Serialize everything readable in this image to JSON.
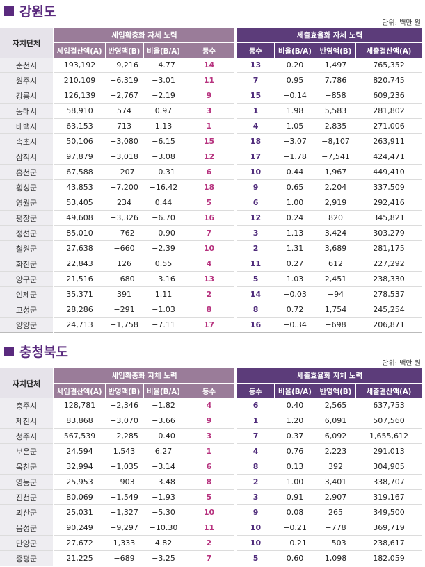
{
  "sections": [
    {
      "title": "강원도",
      "unit": "단위: 백만 원",
      "header": {
        "region": "자치단체",
        "groupA": "세입확충화 자체 노력",
        "groupB": "세출효율화 자체 노력",
        "colsA": [
          "세입결산액(A)",
          "반영액(B)",
          "비율(B/A)",
          "등수"
        ],
        "colsB": [
          "등수",
          "비율(B/A)",
          "반영액(B)",
          "세출결산액(A)"
        ]
      },
      "rows": [
        [
          "춘천시",
          "193,192",
          "−9,216",
          "−4.77",
          "14",
          "13",
          "0.20",
          "1,497",
          "765,352"
        ],
        [
          "원주시",
          "210,109",
          "−6,319",
          "−3.01",
          "11",
          "7",
          "0.95",
          "7,786",
          "820,745"
        ],
        [
          "강릉시",
          "126,139",
          "−2,767",
          "−2.19",
          "9",
          "15",
          "−0.14",
          "−858",
          "609,236"
        ],
        [
          "동해시",
          "58,910",
          "574",
          "0.97",
          "3",
          "1",
          "1.98",
          "5,583",
          "281,802"
        ],
        [
          "태백시",
          "63,153",
          "713",
          "1.13",
          "1",
          "4",
          "1.05",
          "2,835",
          "271,006"
        ],
        [
          "속초시",
          "50,106",
          "−3,080",
          "−6.15",
          "15",
          "18",
          "−3.07",
          "−8,107",
          "263,911"
        ],
        [
          "삼척시",
          "97,879",
          "−3,018",
          "−3.08",
          "12",
          "17",
          "−1.78",
          "−7,541",
          "424,471"
        ],
        [
          "홍천군",
          "67,588",
          "−207",
          "−0.31",
          "6",
          "10",
          "0.44",
          "1,967",
          "449,410"
        ],
        [
          "횡성군",
          "43,853",
          "−7,200",
          "−16.42",
          "18",
          "9",
          "0.65",
          "2,204",
          "337,509"
        ],
        [
          "영월군",
          "53,405",
          "234",
          "0.44",
          "5",
          "6",
          "1.00",
          "2,919",
          "292,416"
        ],
        [
          "평창군",
          "49,608",
          "−3,326",
          "−6.70",
          "16",
          "12",
          "0.24",
          "820",
          "345,821"
        ],
        [
          "정선군",
          "85,010",
          "−762",
          "−0.90",
          "7",
          "3",
          "1.13",
          "3,424",
          "303,279"
        ],
        [
          "철원군",
          "27,638",
          "−660",
          "−2.39",
          "10",
          "2",
          "1.31",
          "3,689",
          "281,175"
        ],
        [
          "화천군",
          "22,843",
          "126",
          "0.55",
          "4",
          "11",
          "0.27",
          "612",
          "227,292"
        ],
        [
          "양구군",
          "21,516",
          "−680",
          "−3.16",
          "13",
          "5",
          "1.03",
          "2,451",
          "238,330"
        ],
        [
          "인제군",
          "35,371",
          "391",
          "1.11",
          "2",
          "14",
          "−0.03",
          "−94",
          "278,537"
        ],
        [
          "고성군",
          "28,286",
          "−291",
          "−1.03",
          "8",
          "8",
          "0.72",
          "1,754",
          "245,254"
        ],
        [
          "양양군",
          "24,713",
          "−1,758",
          "−7.11",
          "17",
          "16",
          "−0.34",
          "−698",
          "206,871"
        ]
      ]
    },
    {
      "title": "충청북도",
      "unit": "단위: 백만 원",
      "header": {
        "region": "자치단체",
        "groupA": "세입확충화 자체 노력",
        "groupB": "세출효율화 자체 노력",
        "colsA": [
          "세입결산액(A)",
          "반영액(B)",
          "비율(B/A)",
          "등수"
        ],
        "colsB": [
          "등수",
          "비율(B/A)",
          "반영액(B)",
          "세출결산액(A)"
        ]
      },
      "rows": [
        [
          "충주시",
          "128,781",
          "−2,346",
          "−1.82",
          "4",
          "6",
          "0.40",
          "2,565",
          "637,753"
        ],
        [
          "제천시",
          "83,868",
          "−3,070",
          "−3.66",
          "9",
          "1",
          "1.20",
          "6,091",
          "507,560"
        ],
        [
          "청주시",
          "567,539",
          "−2,285",
          "−0.40",
          "3",
          "7",
          "0.37",
          "6,092",
          "1,655,612"
        ],
        [
          "보은군",
          "24,594",
          "1,543",
          "6.27",
          "1",
          "4",
          "0.76",
          "2,223",
          "291,013"
        ],
        [
          "옥천군",
          "32,994",
          "−1,035",
          "−3.14",
          "6",
          "8",
          "0.13",
          "392",
          "304,905"
        ],
        [
          "영동군",
          "25,953",
          "−903",
          "−3.48",
          "8",
          "2",
          "1.00",
          "3,401",
          "338,707"
        ],
        [
          "진천군",
          "80,069",
          "−1,549",
          "−1.93",
          "5",
          "3",
          "0.91",
          "2,907",
          "319,167"
        ],
        [
          "괴산군",
          "25,031",
          "−1,327",
          "−5.30",
          "10",
          "9",
          "0.08",
          "265",
          "349,500"
        ],
        [
          "음성군",
          "90,249",
          "−9,297",
          "−10.30",
          "11",
          "10",
          "−0.21",
          "−778",
          "369,719"
        ],
        [
          "단양군",
          "27,672",
          "1,333",
          "4.82",
          "2",
          "10",
          "−0.21",
          "−503",
          "238,617"
        ],
        [
          "증평군",
          "21,225",
          "−689",
          "−3.25",
          "7",
          "5",
          "0.60",
          "1,098",
          "182,059"
        ]
      ]
    }
  ]
}
